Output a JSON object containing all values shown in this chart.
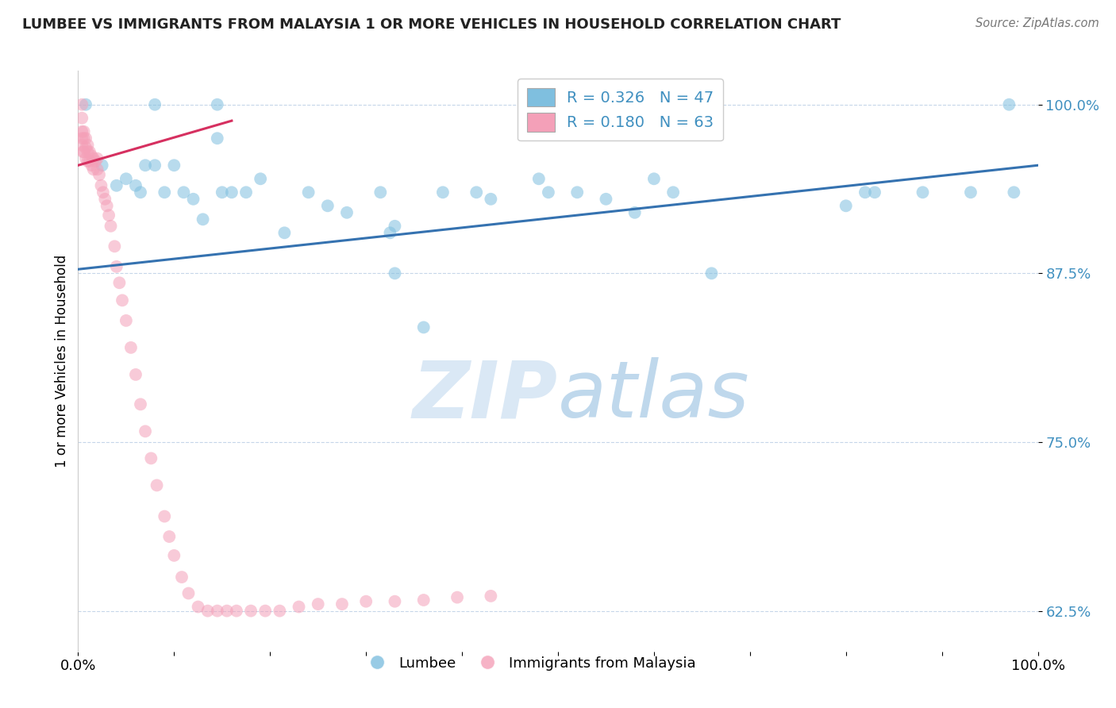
{
  "title": "LUMBEE VS IMMIGRANTS FROM MALAYSIA 1 OR MORE VEHICLES IN HOUSEHOLD CORRELATION CHART",
  "source": "Source: ZipAtlas.com",
  "ylabel": "1 or more Vehicles in Household",
  "xlim": [
    0.0,
    1.0
  ],
  "ylim": [
    0.595,
    1.025
  ],
  "yticks": [
    0.625,
    0.75,
    0.875,
    1.0
  ],
  "ytick_labels": [
    "62.5%",
    "75.0%",
    "87.5%",
    "100.0%"
  ],
  "legend_R1": "R = 0.326",
  "legend_N1": "N = 47",
  "legend_R2": "R = 0.180",
  "legend_N2": "N = 63",
  "color_blue": "#7fbfdf",
  "color_pink": "#f4a0b8",
  "color_line_blue": "#3572b0",
  "color_line_pink": "#d63060",
  "color_tick_blue": "#4090c0",
  "watermark_color": "#dae8f5",
  "background_color": "#ffffff",
  "blue_x": [
    0.008,
    0.08,
    0.145,
    0.145,
    0.025,
    0.04,
    0.05,
    0.06,
    0.065,
    0.07,
    0.08,
    0.09,
    0.1,
    0.11,
    0.12,
    0.13,
    0.15,
    0.16,
    0.175,
    0.19,
    0.215,
    0.24,
    0.26,
    0.28,
    0.315,
    0.325,
    0.33,
    0.38,
    0.415,
    0.43,
    0.49,
    0.52,
    0.55,
    0.58,
    0.6,
    0.62,
    0.66,
    0.8,
    0.83,
    0.88,
    0.93,
    0.97,
    0.33,
    0.36,
    0.48,
    0.82,
    0.975
  ],
  "blue_y": [
    1.0,
    1.0,
    1.0,
    0.975,
    0.955,
    0.94,
    0.945,
    0.94,
    0.935,
    0.955,
    0.955,
    0.935,
    0.955,
    0.935,
    0.93,
    0.915,
    0.935,
    0.935,
    0.935,
    0.945,
    0.905,
    0.935,
    0.925,
    0.92,
    0.935,
    0.905,
    0.91,
    0.935,
    0.935,
    0.93,
    0.935,
    0.935,
    0.93,
    0.92,
    0.945,
    0.935,
    0.875,
    0.925,
    0.935,
    0.935,
    0.935,
    1.0,
    0.875,
    0.835,
    0.945,
    0.935,
    0.935
  ],
  "pink_x": [
    0.004,
    0.004,
    0.004,
    0.004,
    0.004,
    0.006,
    0.006,
    0.006,
    0.008,
    0.008,
    0.008,
    0.01,
    0.01,
    0.01,
    0.012,
    0.012,
    0.014,
    0.014,
    0.016,
    0.016,
    0.018,
    0.02,
    0.02,
    0.022,
    0.024,
    0.026,
    0.028,
    0.03,
    0.032,
    0.034,
    0.038,
    0.04,
    0.043,
    0.046,
    0.05,
    0.055,
    0.06,
    0.065,
    0.07,
    0.076,
    0.082,
    0.09,
    0.095,
    0.1,
    0.108,
    0.115,
    0.125,
    0.135,
    0.145,
    0.155,
    0.165,
    0.18,
    0.195,
    0.21,
    0.23,
    0.25,
    0.275,
    0.3,
    0.33,
    0.36,
    0.395,
    0.43,
    0.005
  ],
  "pink_y": [
    1.0,
    0.99,
    0.98,
    0.975,
    0.97,
    0.98,
    0.975,
    0.965,
    0.975,
    0.968,
    0.96,
    0.97,
    0.965,
    0.958,
    0.965,
    0.958,
    0.962,
    0.955,
    0.96,
    0.952,
    0.958,
    0.96,
    0.952,
    0.948,
    0.94,
    0.935,
    0.93,
    0.925,
    0.918,
    0.91,
    0.895,
    0.88,
    0.868,
    0.855,
    0.84,
    0.82,
    0.8,
    0.778,
    0.758,
    0.738,
    0.718,
    0.695,
    0.68,
    0.666,
    0.65,
    0.638,
    0.628,
    0.625,
    0.625,
    0.625,
    0.625,
    0.625,
    0.625,
    0.625,
    0.628,
    0.63,
    0.63,
    0.632,
    0.632,
    0.633,
    0.635,
    0.636,
    0.965
  ],
  "blue_trend": [
    0.0,
    1.0,
    0.878,
    0.955
  ],
  "pink_trend": [
    0.0,
    0.16,
    0.955,
    0.988
  ]
}
